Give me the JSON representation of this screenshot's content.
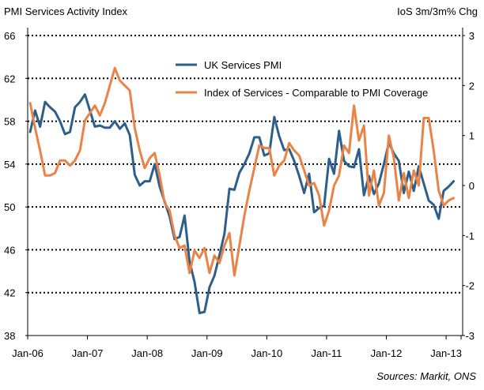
{
  "chart_data": {
    "type": "line",
    "title_left": "PMI Services Activity Index",
    "title_right": "IoS 3m/3m% Chg",
    "source": "Sources: Markit, ONS",
    "grid": "horizontal dotted",
    "legend_position": "top-center",
    "x_axis": {
      "type": "monthly",
      "start": "Jan-06",
      "end": "Apr-13",
      "tick_labels": [
        "Jan-06",
        "Jan-07",
        "Jan-08",
        "Jan-09",
        "Jan-10",
        "Jan-11",
        "Jan-12",
        "Jan-13"
      ]
    },
    "y_left": {
      "ylim": [
        38,
        66
      ],
      "ticks": [
        38,
        42,
        46,
        50,
        54,
        58,
        62,
        66
      ]
    },
    "y_right": {
      "ylim": [
        -3,
        3
      ],
      "ticks": [
        -3,
        -2,
        -1,
        0,
        1,
        2,
        3
      ]
    },
    "series": [
      {
        "name": "UK Services PMI",
        "axis": "left",
        "color": "#2e5f8a",
        "start": "Jan-06",
        "values": [
          57.0,
          59.0,
          57.5,
          59.8,
          59.3,
          58.9,
          58.0,
          56.8,
          57.0,
          59.3,
          59.8,
          60.5,
          59.0,
          57.5,
          57.6,
          57.4,
          57.4,
          58.0,
          57.3,
          57.8,
          56.7,
          53.0,
          52.0,
          52.4,
          52.4,
          54.0,
          51.9,
          50.5,
          49.1,
          47.0,
          47.2,
          49.2,
          44.9,
          43.0,
          40.1,
          40.2,
          42.5,
          43.6,
          45.5,
          47.5,
          51.7,
          51.6,
          53.2,
          54.0,
          55.0,
          56.5,
          56.5,
          54.8,
          55.0,
          58.4,
          56.6,
          55.3,
          55.4,
          54.3,
          52.9,
          51.3,
          53.1,
          49.5,
          49.9,
          50.1,
          54.5,
          53.1,
          57.1,
          54.3,
          53.8,
          53.7,
          55.4,
          51.1,
          52.9,
          51.2,
          52.2,
          54.0,
          56.0,
          55.0,
          54.3,
          51.3,
          53.3,
          51.5,
          53.8,
          52.2,
          50.6,
          50.2,
          48.9,
          51.5,
          51.9,
          52.4
        ]
      },
      {
        "name": "Index of Services - Comparable to PMI Coverage",
        "axis": "right",
        "color": "#ea8346",
        "start": "Jan-06",
        "values": [
          1.65,
          1.15,
          0.7,
          0.2,
          0.2,
          0.25,
          0.5,
          0.5,
          0.4,
          0.5,
          0.7,
          1.3,
          1.45,
          1.6,
          1.4,
          1.65,
          2.0,
          2.35,
          2.1,
          2.0,
          1.9,
          1.15,
          0.7,
          0.35,
          0.55,
          0.65,
          0.2,
          -0.35,
          -0.5,
          -1.0,
          -1.25,
          -1.2,
          -1.75,
          -1.3,
          -1.45,
          -1.25,
          -1.75,
          -1.4,
          -1.55,
          -1.2,
          -0.95,
          -1.8,
          -1.2,
          -0.6,
          -0.1,
          0.35,
          0.8,
          0.75,
          0.75,
          0.2,
          0.4,
          0.5,
          0.85,
          0.7,
          0.6,
          0.3,
          0.0,
          0.05,
          -0.2,
          -0.8,
          -0.5,
          0.0,
          0.2,
          0.8,
          0.65,
          1.6,
          0.9,
          1.2,
          -0.2,
          0.3,
          -0.4,
          -0.15,
          1.0,
          0.55,
          -0.3,
          0.25,
          -0.25,
          0.3,
          0.0,
          1.35,
          1.35,
          0.7,
          -0.1,
          -0.4,
          -0.3,
          -0.25
        ]
      }
    ]
  }
}
